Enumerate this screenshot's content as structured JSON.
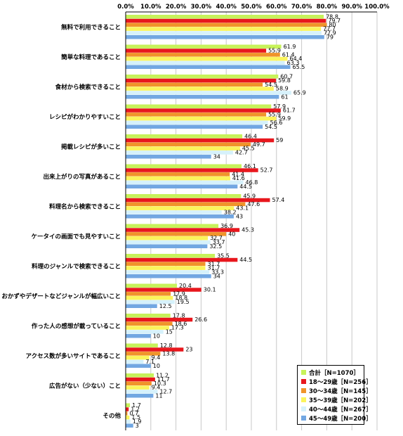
{
  "chart_data": {
    "type": "bar",
    "orientation": "horizontal",
    "title": "",
    "xlabel": "",
    "ylabel": "",
    "xlim": [
      0,
      100
    ],
    "tick_labels": [
      "0.0%",
      "10.0%",
      "20.0%",
      "30.0%",
      "40.0%",
      "50.0%",
      "60.0%",
      "70.0%",
      "80.0%",
      "90.0%",
      "100.0%"
    ],
    "grid": "vertical",
    "legend_position": "bottom-right",
    "categories": [
      "無料で利用できること",
      "簡単な料理であること",
      "食材から検索できること",
      "レシピがわかりやすいこと",
      "掲載レシピが多いこと",
      "出来上がりの写真があること",
      "料理名から検索できること",
      "ケータイの画面でも見やすいこと",
      "料理のジャンルで検索できること",
      "おかずやデザートなどジャンルが幅広いこと",
      "作った人の感想が載っていること",
      "アクセス数が多いサイトであること",
      "広告がない（少ない）こと",
      "その他"
    ],
    "series": [
      {
        "name": "合計［N=1070］",
        "color": "#c7f25a",
        "values": [
          78.8,
          61.9,
          60.7,
          57.9,
          46.4,
          46.1,
          45.9,
          36.9,
          35.5,
          20.4,
          17.8,
          12.8,
          11.2,
          1.7
        ]
      },
      {
        "name": "18～29歳［N=256］",
        "color": "#e8171d",
        "values": [
          79.7,
          55.9,
          59.8,
          61.7,
          59.0,
          52.7,
          57.4,
          45.3,
          44.5,
          30.1,
          26.6,
          23.0,
          11.7,
          1.2
        ]
      },
      {
        "name": "30～34歳［N=145］",
        "color": "#f0942a",
        "values": [
          80.0,
          61.4,
          54.5,
          55.9,
          49.7,
          41.4,
          47.6,
          40.0,
          31.7,
          17.9,
          18.6,
          13.8,
          10.3,
          0.7
        ]
      },
      {
        "name": "35～39歳［N=202］",
        "color": "#fbf45c",
        "values": [
          77.7,
          64.4,
          58.9,
          59.9,
          45.5,
          41.6,
          43.1,
          32.7,
          31.7,
          18.8,
          17.3,
          9.4,
          9.4,
          1.5
        ]
      },
      {
        "name": "40～44歳［N=267］",
        "color": "#d6f1fb",
        "values": [
          77.9,
          63.3,
          65.9,
          56.6,
          42.7,
          46.8,
          38.2,
          33.7,
          33.3,
          19.5,
          15.0,
          7.1,
          12.7,
          1.9
        ]
      },
      {
        "name": "45～49歳［N=200］",
        "color": "#72a7e2",
        "values": [
          79.0,
          65.5,
          61.0,
          54.5,
          34.0,
          44.5,
          43.0,
          32.5,
          34.0,
          12.5,
          10.0,
          10.0,
          11.0,
          3.0
        ]
      }
    ]
  }
}
